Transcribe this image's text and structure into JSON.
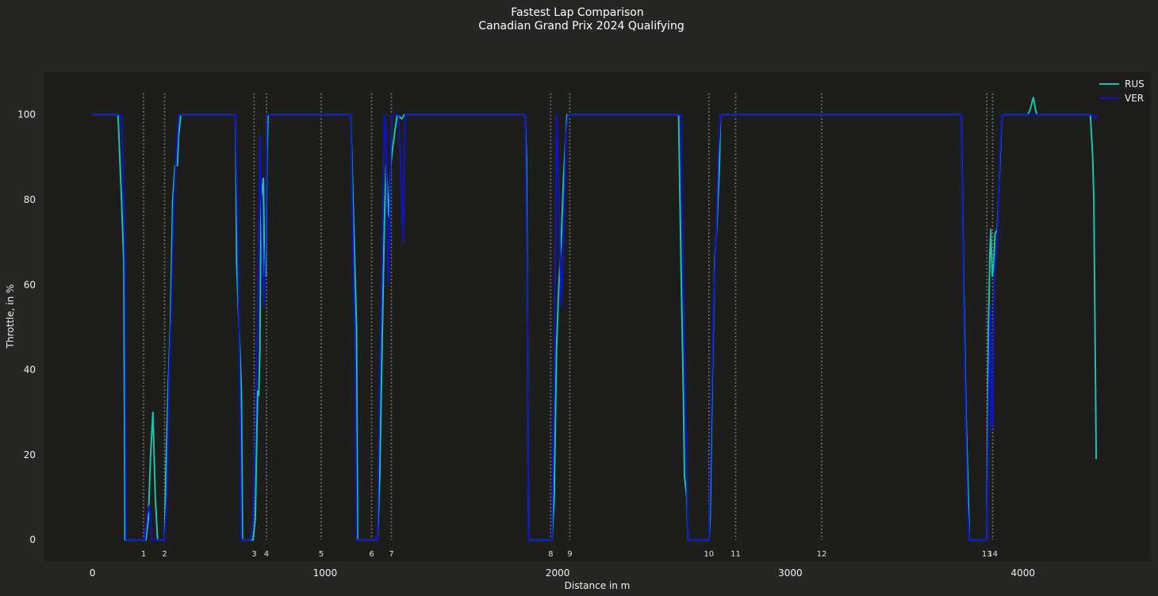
{
  "chart_data": {
    "type": "line",
    "title": "Fastest Lap Comparison",
    "subtitle": "Canadian Grand Prix 2024 Qualifying",
    "xlabel": "Distance in m",
    "ylabel": "Throttle, in %",
    "xlim": [
      -210,
      4550
    ],
    "ylim": [
      -5,
      110
    ],
    "xticks": [
      0,
      1000,
      2000,
      3000,
      4000
    ],
    "yticks": [
      0,
      20,
      40,
      60,
      80,
      100
    ],
    "grid": false,
    "legend_position": "top-right",
    "corner_labels_position": "bottom",
    "colors": {
      "background": "#262625",
      "plot_area": "#1d1d1c",
      "corner_line": "#8a8a8a",
      "axis_text": "#f0f0f0"
    },
    "corners": [
      {
        "label": "1",
        "distance": 220
      },
      {
        "label": "2",
        "distance": 310
      },
      {
        "label": "3",
        "distance": 695
      },
      {
        "label": "4",
        "distance": 748
      },
      {
        "label": "5",
        "distance": 983
      },
      {
        "label": "6",
        "distance": 1200
      },
      {
        "label": "7",
        "distance": 1285
      },
      {
        "label": "8",
        "distance": 1970
      },
      {
        "label": "9",
        "distance": 2052
      },
      {
        "label": "10",
        "distance": 2650
      },
      {
        "label": "11",
        "distance": 2765
      },
      {
        "label": "12",
        "distance": 3135
      },
      {
        "label": "13",
        "distance": 3845
      },
      {
        "label": "14",
        "distance": 3870
      }
    ],
    "series": [
      {
        "name": "RUS",
        "color": "#1bc4a8",
        "points": [
          [
            0,
            100
          ],
          [
            110,
            100
          ],
          [
            125,
            80
          ],
          [
            135,
            65
          ],
          [
            140,
            0
          ],
          [
            160,
            0
          ],
          [
            210,
            0
          ],
          [
            230,
            0
          ],
          [
            240,
            5
          ],
          [
            250,
            20
          ],
          [
            260,
            30
          ],
          [
            270,
            10
          ],
          [
            280,
            0
          ],
          [
            300,
            0
          ],
          [
            310,
            0
          ],
          [
            315,
            15
          ],
          [
            325,
            35
          ],
          [
            335,
            50
          ],
          [
            345,
            80
          ],
          [
            355,
            88
          ],
          [
            365,
            88
          ],
          [
            370,
            95
          ],
          [
            380,
            100
          ],
          [
            615,
            100
          ],
          [
            620,
            65
          ],
          [
            630,
            50
          ],
          [
            640,
            35
          ],
          [
            645,
            0
          ],
          [
            690,
            0
          ],
          [
            700,
            5
          ],
          [
            710,
            35
          ],
          [
            715,
            34
          ],
          [
            720,
            45
          ],
          [
            725,
            80
          ],
          [
            735,
            85
          ],
          [
            740,
            62
          ],
          [
            745,
            62
          ],
          [
            750,
            90
          ],
          [
            755,
            100
          ],
          [
            1110,
            100
          ],
          [
            1120,
            80
          ],
          [
            1130,
            60
          ],
          [
            1135,
            50
          ],
          [
            1140,
            0
          ],
          [
            1200,
            0
          ],
          [
            1225,
            0
          ],
          [
            1235,
            15
          ],
          [
            1245,
            45
          ],
          [
            1255,
            75
          ],
          [
            1262,
            88
          ],
          [
            1268,
            82
          ],
          [
            1275,
            76
          ],
          [
            1282,
            88
          ],
          [
            1290,
            92
          ],
          [
            1300,
            96
          ],
          [
            1310,
            100
          ],
          [
            1330,
            99
          ],
          [
            1340,
            100
          ],
          [
            1860,
            100
          ],
          [
            1865,
            90
          ],
          [
            1870,
            50
          ],
          [
            1875,
            0
          ],
          [
            1960,
            0
          ],
          [
            1975,
            0
          ],
          [
            1985,
            10
          ],
          [
            1995,
            45
          ],
          [
            2005,
            60
          ],
          [
            2015,
            70
          ],
          [
            2025,
            85
          ],
          [
            2035,
            95
          ],
          [
            2040,
            100
          ],
          [
            2520,
            100
          ],
          [
            2530,
            65
          ],
          [
            2540,
            35
          ],
          [
            2545,
            15
          ],
          [
            2555,
            10
          ],
          [
            2560,
            0
          ],
          [
            2650,
            0
          ],
          [
            2655,
            5
          ],
          [
            2665,
            40
          ],
          [
            2675,
            65
          ],
          [
            2685,
            75
          ],
          [
            2695,
            88
          ],
          [
            2700,
            100
          ],
          [
            3735,
            100
          ],
          [
            3745,
            60
          ],
          [
            3755,
            30
          ],
          [
            3765,
            10
          ],
          [
            3770,
            0
          ],
          [
            3845,
            0
          ],
          [
            3852,
            50
          ],
          [
            3858,
            68
          ],
          [
            3862,
            73
          ],
          [
            3868,
            62
          ],
          [
            3875,
            65
          ],
          [
            3880,
            72
          ],
          [
            3890,
            73
          ],
          [
            3900,
            88
          ],
          [
            3910,
            100
          ],
          [
            4020,
            100
          ],
          [
            4030,
            101
          ],
          [
            4040,
            103
          ],
          [
            4045,
            104
          ],
          [
            4055,
            101
          ],
          [
            4060,
            100
          ],
          [
            4290,
            100
          ],
          [
            4300,
            90
          ],
          [
            4305,
            80
          ],
          [
            4315,
            19
          ]
        ]
      },
      {
        "name": "VER",
        "color": "#0d14cc",
        "points": [
          [
            0,
            100
          ],
          [
            120,
            100
          ],
          [
            125,
            100
          ],
          [
            130,
            90
          ],
          [
            140,
            65
          ],
          [
            145,
            0
          ],
          [
            210,
            0
          ],
          [
            225,
            0
          ],
          [
            235,
            6
          ],
          [
            245,
            8
          ],
          [
            255,
            0
          ],
          [
            300,
            0
          ],
          [
            310,
            0
          ],
          [
            320,
            10
          ],
          [
            330,
            40
          ],
          [
            340,
            55
          ],
          [
            350,
            80
          ],
          [
            360,
            90
          ],
          [
            370,
            100
          ],
          [
            615,
            100
          ],
          [
            625,
            70
          ],
          [
            635,
            30
          ],
          [
            640,
            0
          ],
          [
            680,
            0
          ],
          [
            690,
            5
          ],
          [
            700,
            25
          ],
          [
            710,
            55
          ],
          [
            720,
            95
          ],
          [
            730,
            68
          ],
          [
            737,
            55
          ],
          [
            745,
            70
          ],
          [
            750,
            100
          ],
          [
            1110,
            100
          ],
          [
            1120,
            70
          ],
          [
            1130,
            40
          ],
          [
            1135,
            0
          ],
          [
            1200,
            0
          ],
          [
            1225,
            0
          ],
          [
            1235,
            40
          ],
          [
            1245,
            65
          ],
          [
            1255,
            100
          ],
          [
            1262,
            95
          ],
          [
            1270,
            60
          ],
          [
            1278,
            75
          ],
          [
            1285,
            100
          ],
          [
            1295,
            100
          ],
          [
            1315,
            100
          ],
          [
            1325,
            88
          ],
          [
            1335,
            70
          ],
          [
            1345,
            100
          ],
          [
            1860,
            100
          ],
          [
            1870,
            50
          ],
          [
            1875,
            0
          ],
          [
            1960,
            0
          ],
          [
            1975,
            0
          ],
          [
            1985,
            35
          ],
          [
            1995,
            100
          ],
          [
            2005,
            82
          ],
          [
            2015,
            55
          ],
          [
            2025,
            70
          ],
          [
            2035,
            95
          ],
          [
            2045,
            100
          ],
          [
            2530,
            100
          ],
          [
            2540,
            60
          ],
          [
            2550,
            30
          ],
          [
            2560,
            0
          ],
          [
            2650,
            0
          ],
          [
            2660,
            30
          ],
          [
            2670,
            55
          ],
          [
            2680,
            70
          ],
          [
            2690,
            90
          ],
          [
            2700,
            100
          ],
          [
            3735,
            100
          ],
          [
            3745,
            55
          ],
          [
            3755,
            25
          ],
          [
            3762,
            8
          ],
          [
            3770,
            0
          ],
          [
            3845,
            0
          ],
          [
            3852,
            30
          ],
          [
            3860,
            55
          ],
          [
            3865,
            26
          ],
          [
            3870,
            28
          ],
          [
            3875,
            55
          ],
          [
            3880,
            65
          ],
          [
            3890,
            70
          ],
          [
            3900,
            90
          ],
          [
            3910,
            100
          ],
          [
            4300,
            100
          ],
          [
            4310,
            99
          ],
          [
            4320,
            100
          ]
        ]
      }
    ]
  }
}
